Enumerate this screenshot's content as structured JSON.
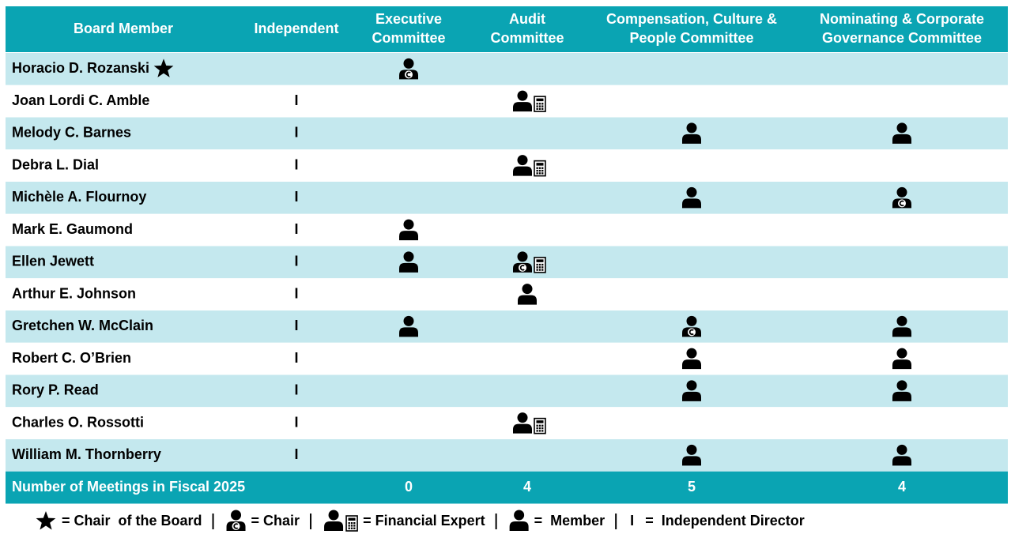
{
  "table": {
    "headers": [
      [
        "Board Member"
      ],
      [
        "Independent"
      ],
      [
        "Executive",
        "Committee"
      ],
      [
        "Audit",
        "Committee"
      ],
      [
        "Compensation, Culture &",
        "People Committee"
      ],
      [
        "Nominating & Corporate",
        "Governance Committee"
      ]
    ],
    "rows": [
      {
        "name": "Horacio D. Rozanski",
        "board_chair": true,
        "independent": null,
        "roles": [
          "chair",
          null,
          null,
          null
        ]
      },
      {
        "name": "Joan Lordi C. Amble",
        "independent": "I",
        "roles": [
          null,
          "expert",
          null,
          null
        ]
      },
      {
        "name": "Melody C. Barnes",
        "independent": "I",
        "roles": [
          null,
          null,
          "member",
          "member"
        ]
      },
      {
        "name": "Debra L. Dial",
        "independent": "I",
        "roles": [
          null,
          "expert",
          null,
          null
        ]
      },
      {
        "name": "Michèle A. Flournoy",
        "independent": "I",
        "roles": [
          null,
          null,
          "member",
          "chair"
        ]
      },
      {
        "name": "Mark E. Gaumond",
        "independent": "I",
        "roles": [
          "member",
          null,
          null,
          null
        ]
      },
      {
        "name": "Ellen Jewett",
        "independent": "I",
        "roles": [
          "member",
          "chair-expert",
          null,
          null
        ]
      },
      {
        "name": "Arthur E. Johnson",
        "independent": "I",
        "roles": [
          null,
          "member",
          null,
          null
        ]
      },
      {
        "name": "Gretchen W. McClain",
        "independent": "I",
        "roles": [
          "member",
          null,
          "chair",
          "member"
        ]
      },
      {
        "name": "Robert C. O’Brien",
        "independent": "I",
        "roles": [
          null,
          null,
          "member",
          "member"
        ]
      },
      {
        "name": "Rory P. Read",
        "independent": "I",
        "roles": [
          null,
          null,
          "member",
          "member"
        ]
      },
      {
        "name": "Charles O. Rossotti",
        "independent": "I",
        "roles": [
          null,
          "expert",
          null,
          null
        ]
      },
      {
        "name": "William M. Thornberry",
        "independent": "I",
        "roles": [
          null,
          null,
          "member",
          "member"
        ]
      }
    ],
    "footer": {
      "label": "Number of Meetings in Fiscal 2025",
      "meetings": [
        0,
        4,
        5,
        4
      ]
    }
  },
  "legend": [
    {
      "icon": "star",
      "label": "= Chair  of the Board"
    },
    {
      "icon": "chair",
      "label": "= Chair"
    },
    {
      "icon": "expert",
      "label": "= Financial Expert"
    },
    {
      "icon": "member",
      "label": "=  Member"
    },
    {
      "key": "I",
      "label": "=  Independent Director"
    }
  ]
}
